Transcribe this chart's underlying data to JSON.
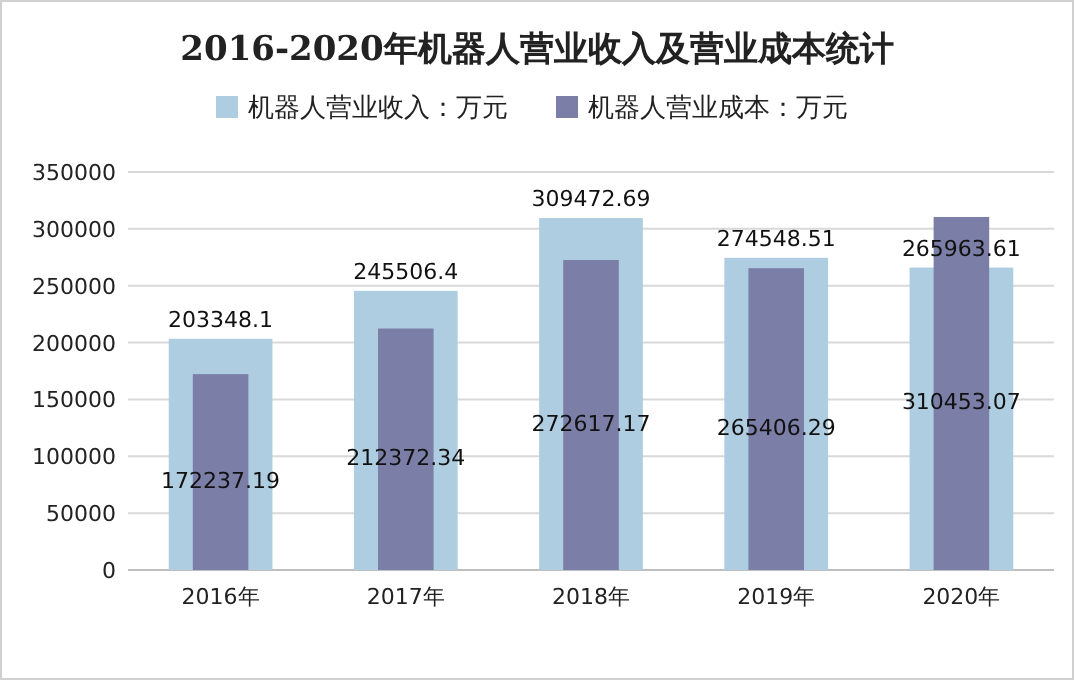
{
  "chart_data": {
    "type": "bar",
    "title": "2016-2020年机器人营业收入及营业成本统计",
    "categories": [
      "2016年",
      "2017年",
      "2018年",
      "2019年",
      "2020年"
    ],
    "series": [
      {
        "name": "机器人营业收入：万元",
        "color": "#aecde0",
        "values": [
          203348.1,
          245506.4,
          309472.69,
          274548.51,
          265963.61
        ]
      },
      {
        "name": "机器人营业成本：万元",
        "color": "#7b7ea6",
        "values": [
          172237.19,
          212372.34,
          272617.17,
          265406.29,
          310453.07
        ]
      }
    ],
    "ylim": [
      0,
      350000
    ],
    "yticks": [
      0,
      50000,
      100000,
      150000,
      200000,
      250000,
      300000,
      350000
    ],
    "grid": "y",
    "legend": "top",
    "data_labels": true
  }
}
